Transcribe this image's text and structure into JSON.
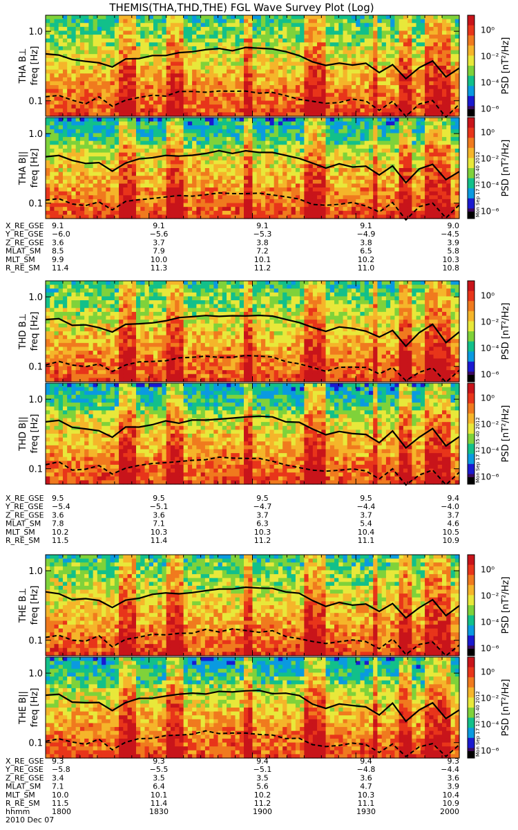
{
  "title": "THEMIS(THA,THD,THE) FGL Wave Survey Plot (Log)",
  "colorbar": {
    "label": "PSD [nT²/Hz]",
    "ticks": [
      "10⁰",
      "10⁻²",
      "10⁻⁴",
      "10⁻⁶"
    ],
    "stamp": "Mon Sep 17 12:35:40 2012"
  },
  "ylabel": "freq [Hz]",
  "yticks": [
    "1.0",
    "0.1"
  ],
  "colors": {
    "line_solid": "#000000",
    "line_dashed": "#000000",
    "palette": [
      "#3b0a5e",
      "#1a1ad0",
      "#0a9ae0",
      "#12c08a",
      "#7fd23a",
      "#e8e83a",
      "#f5b52a",
      "#f07a1e",
      "#e8351a",
      "#c8141a"
    ]
  },
  "time_label": "hhmm",
  "date_label": "2010 Dec 07",
  "time_ticks": [
    "1800",
    "1830",
    "1900",
    "1930",
    "2000"
  ],
  "probes": [
    {
      "name": "THA",
      "panels": [
        "THA B⊥",
        "THA B||"
      ],
      "ephemeris": [
        {
          "label": "X_RE_GSE",
          "values": [
            "9.1",
            "9.1",
            "9.1",
            "9.1",
            "9.0"
          ]
        },
        {
          "label": "Y_RE_GSE",
          "values": [
            "−6.0",
            "−5.6",
            "−5.3",
            "−4.9",
            "−4.5"
          ]
        },
        {
          "label": "Z_RE_GSE",
          "values": [
            "3.6",
            "3.7",
            "3.8",
            "3.8",
            "3.9"
          ]
        },
        {
          "label": "MLAT_SM",
          "values": [
            "8.5",
            "7.9",
            "7.2",
            "6.5",
            "5.8"
          ]
        },
        {
          "label": "MLT_SM",
          "values": [
            "9.9",
            "10.0",
            "10.1",
            "10.2",
            "10.3"
          ]
        },
        {
          "label": "R_RE_SM",
          "values": [
            "11.4",
            "11.3",
            "11.2",
            "11.0",
            "10.8"
          ]
        }
      ]
    },
    {
      "name": "THD",
      "panels": [
        "THD B⊥",
        "THD B||"
      ],
      "ephemeris": [
        {
          "label": "X_RE_GSE",
          "values": [
            "9.5",
            "9.5",
            "9.5",
            "9.5",
            "9.4"
          ]
        },
        {
          "label": "Y_RE_GSE",
          "values": [
            "−5.4",
            "−5.1",
            "−4.7",
            "−4.4",
            "−4.0"
          ]
        },
        {
          "label": "Z_RE_GSE",
          "values": [
            "3.6",
            "3.6",
            "3.7",
            "3.7",
            "3.7"
          ]
        },
        {
          "label": "MLAT_SM",
          "values": [
            "7.8",
            "7.1",
            "6.3",
            "5.4",
            "4.6"
          ]
        },
        {
          "label": "MLT_SM",
          "values": [
            "10.2",
            "10.3",
            "10.3",
            "10.4",
            "10.5"
          ]
        },
        {
          "label": "R_RE_SM",
          "values": [
            "11.5",
            "11.4",
            "11.2",
            "11.1",
            "10.9"
          ]
        }
      ]
    },
    {
      "name": "THE",
      "panels": [
        "THE B⊥",
        "THE B||"
      ],
      "ephemeris": [
        {
          "label": "X_RE_GSE",
          "values": [
            "9.3",
            "9.3",
            "9.4",
            "9.4",
            "9.3"
          ]
        },
        {
          "label": "Y_RE_GSE",
          "values": [
            "−5.8",
            "−5.5",
            "−5.1",
            "−4.8",
            "−4.4"
          ]
        },
        {
          "label": "Z_RE_GSE",
          "values": [
            "3.4",
            "3.5",
            "3.5",
            "3.6",
            "3.6"
          ]
        },
        {
          "label": "MLAT_SM",
          "values": [
            "7.1",
            "6.4",
            "5.6",
            "4.7",
            "3.9"
          ]
        },
        {
          "label": "MLT_SM",
          "values": [
            "10.0",
            "10.1",
            "10.2",
            "10.3",
            "10.4"
          ]
        },
        {
          "label": "R_RE_SM",
          "values": [
            "11.5",
            "11.4",
            "11.2",
            "11.1",
            "10.9"
          ]
        }
      ]
    }
  ],
  "chart_data": {
    "type": "heatmap",
    "title": "THEMIS(THA,THD,THE) FGL Wave Survey Plot (Log)",
    "x": {
      "label": "hhmm",
      "ticks": [
        "1800",
        "1830",
        "1900",
        "1930",
        "2000"
      ]
    },
    "y": {
      "label": "freq [Hz]",
      "scale": "log",
      "range": [
        0.06,
        1.7
      ],
      "ticks": [
        0.1,
        1.0
      ]
    },
    "z": {
      "label": "PSD [nT²/Hz]",
      "scale": "log",
      "range": [
        1e-06,
        10
      ]
    },
    "overlay_lines": [
      {
        "style": "solid",
        "freq_hz": [
          0.48,
          0.47,
          0.4,
          0.38,
          0.37,
          0.3,
          0.38,
          0.42,
          0.44,
          0.47,
          0.48,
          0.5,
          0.52,
          0.54,
          0.55,
          0.56,
          0.55,
          0.53,
          0.5,
          0.45,
          0.36,
          0.32,
          0.35,
          0.34,
          0.33,
          0.25,
          0.35,
          0.2,
          0.3,
          0.38,
          0.22,
          0.3
        ]
      },
      {
        "style": "dashed",
        "freq_hz": [
          0.11,
          0.12,
          0.1,
          0.095,
          0.11,
          0.08,
          0.1,
          0.11,
          0.12,
          0.12,
          0.13,
          0.13,
          0.14,
          0.14,
          0.14,
          0.14,
          0.135,
          0.13,
          0.12,
          0.11,
          0.095,
          0.09,
          0.095,
          0.1,
          0.095,
          0.075,
          0.1,
          0.06,
          0.085,
          0.1,
          0.06,
          0.09
        ]
      }
    ]
  }
}
